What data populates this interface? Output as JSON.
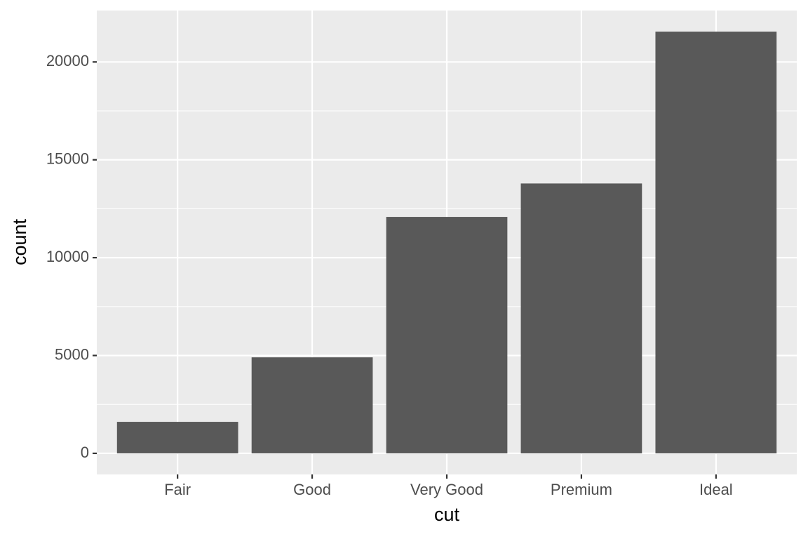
{
  "chart_data": {
    "type": "bar",
    "x_label": "cut",
    "y_label": "count",
    "categories": [
      "Fair",
      "Good",
      "Very Good",
      "Premium",
      "Ideal"
    ],
    "values": [
      1610,
      4906,
      12082,
      13791,
      21551
    ],
    "color": "#595959",
    "ylim": [
      -1077.55,
      22628.55
    ],
    "yticks": [
      0,
      5000,
      10000,
      15000,
      20000
    ],
    "y_minor_ticks": [
      2500,
      7500,
      12500,
      17500
    ],
    "grid": true
  }
}
